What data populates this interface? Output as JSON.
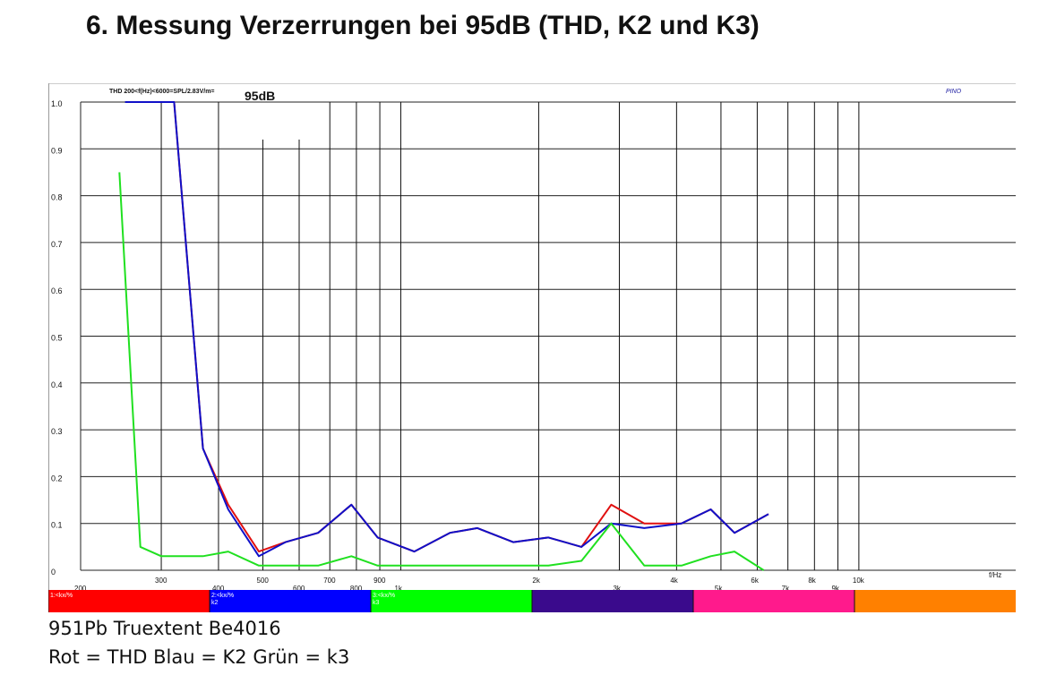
{
  "heading": "6.  Messung Verzerrungen bei 95dB (THD, K2 und K3)",
  "chart_data": {
    "type": "line",
    "header_text": "THD 200<f(Hz)<6000=SPL/2.83V/m=",
    "level_label": "95dB",
    "brand_label": "PINO",
    "x_unit_label": "f/Hz",
    "x_scale": "log",
    "xlim": [
      200,
      22000
    ],
    "ylim": [
      0,
      1.0
    ],
    "x_ticks": [
      {
        "value": 200,
        "label": "200"
      },
      {
        "value": 300,
        "label": "300"
      },
      {
        "value": 400,
        "label": "400"
      },
      {
        "value": 500,
        "label": "500"
      },
      {
        "value": 600,
        "label": "600"
      },
      {
        "value": 700,
        "label": "700"
      },
      {
        "value": 800,
        "label": "800"
      },
      {
        "value": 900,
        "label": "900"
      },
      {
        "value": 1000,
        "label": "1k"
      },
      {
        "value": 2000,
        "label": "2k"
      },
      {
        "value": 3000,
        "label": "3k"
      },
      {
        "value": 4000,
        "label": "4k"
      },
      {
        "value": 5000,
        "label": "5k"
      },
      {
        "value": 6000,
        "label": "6k"
      },
      {
        "value": 7000,
        "label": "7k"
      },
      {
        "value": 8000,
        "label": "8k"
      },
      {
        "value": 9000,
        "label": "9k"
      },
      {
        "value": 10000,
        "label": "10k"
      }
    ],
    "y_ticks": [
      {
        "value": 0,
        "label": "0"
      },
      {
        "value": 0.1,
        "label": "0.1"
      },
      {
        "value": 0.2,
        "label": "0.2"
      },
      {
        "value": 0.3,
        "label": "0.3"
      },
      {
        "value": 0.4,
        "label": "0.4"
      },
      {
        "value": 0.5,
        "label": "0.5"
      },
      {
        "value": 0.6,
        "label": "0.6"
      },
      {
        "value": 0.7,
        "label": "0.7"
      },
      {
        "value": 0.8,
        "label": "0.8"
      },
      {
        "value": 0.9,
        "label": "0.9"
      },
      {
        "value": 1.0,
        "label": "1.0"
      }
    ],
    "series": [
      {
        "color": "#e01010",
        "points": [
          [
            270,
            1.0
          ],
          [
            320,
            1.0
          ],
          [
            370,
            0.26
          ],
          [
            420,
            0.14
          ],
          [
            490,
            0.04
          ],
          [
            560,
            0.06
          ],
          [
            660,
            0.08
          ],
          [
            780,
            0.14
          ],
          [
            890,
            0.07
          ],
          [
            1070,
            0.04
          ],
          [
            1280,
            0.08
          ],
          [
            1470,
            0.09
          ],
          [
            1760,
            0.06
          ],
          [
            2100,
            0.07
          ],
          [
            2480,
            0.05
          ],
          [
            2880,
            0.14
          ],
          [
            3400,
            0.1
          ],
          [
            4100,
            0.1
          ],
          [
            4750,
            0.13
          ],
          [
            5350,
            0.08
          ],
          [
            6350,
            0.12
          ]
        ]
      },
      {
        "color": "#1010c8",
        "points": [
          [
            250,
            1.0
          ],
          [
            320,
            1.0
          ],
          [
            370,
            0.26
          ],
          [
            420,
            0.13
          ],
          [
            490,
            0.03
          ],
          [
            560,
            0.06
          ],
          [
            660,
            0.08
          ],
          [
            780,
            0.14
          ],
          [
            890,
            0.07
          ],
          [
            1070,
            0.04
          ],
          [
            1280,
            0.08
          ],
          [
            1470,
            0.09
          ],
          [
            1760,
            0.06
          ],
          [
            2100,
            0.07
          ],
          [
            2480,
            0.05
          ],
          [
            2880,
            0.1
          ],
          [
            3400,
            0.09
          ],
          [
            4100,
            0.1
          ],
          [
            4750,
            0.13
          ],
          [
            5350,
            0.08
          ],
          [
            6350,
            0.12
          ]
        ]
      },
      {
        "color": "#20e020",
        "points": [
          [
            243,
            0.85
          ],
          [
            270,
            0.05
          ],
          [
            300,
            0.03
          ],
          [
            370,
            0.03
          ],
          [
            420,
            0.04
          ],
          [
            490,
            0.01
          ],
          [
            560,
            0.01
          ],
          [
            660,
            0.01
          ],
          [
            780,
            0.03
          ],
          [
            890,
            0.01
          ],
          [
            1070,
            0.01
          ],
          [
            1280,
            0.01
          ],
          [
            1760,
            0.01
          ],
          [
            2100,
            0.01
          ],
          [
            2480,
            0.02
          ],
          [
            2880,
            0.1
          ],
          [
            3400,
            0.01
          ],
          [
            4100,
            0.01
          ],
          [
            4750,
            0.03
          ],
          [
            5350,
            0.04
          ],
          [
            6200,
            0.0
          ]
        ]
      }
    ],
    "legend": [
      {
        "label": "1:<kx/%",
        "label2": "",
        "color": "#ff0000"
      },
      {
        "label": "2:<kx/%",
        "label2": "k2",
        "color": "#0000ff"
      },
      {
        "label": "3:<kx/%",
        "label2": "k3",
        "color": "#00ff00"
      },
      {
        "label": "",
        "label2": "",
        "color": "#3a0a8c"
      },
      {
        "label": "",
        "label2": "",
        "color": "#ff1a8c"
      },
      {
        "label": "",
        "label2": "",
        "color": "#ff8000"
      }
    ]
  },
  "caption": {
    "line1": "951Pb Truextent Be4016",
    "line2": "Rot = THD    Blau = K2   Grün = k3"
  }
}
